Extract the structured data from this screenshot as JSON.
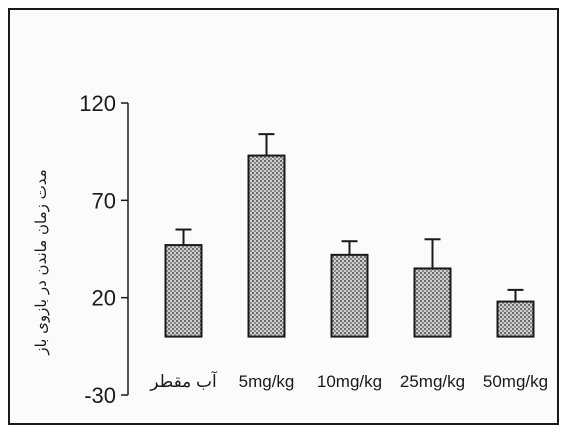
{
  "chart_data": {
    "type": "bar",
    "title": "",
    "xlabel": "",
    "ylabel": "مدت زمان ماندن در بازوی باز",
    "categories": [
      "آب مقطر",
      "5mg/kg",
      "10mg/kg",
      "25mg/kg",
      "50mg/kg"
    ],
    "values": [
      47,
      93,
      42,
      35,
      18
    ],
    "errors": [
      8,
      11,
      7,
      15,
      6
    ],
    "yticks": [
      120,
      70,
      20,
      -30
    ],
    "ylim": [
      -30,
      120
    ],
    "bar_base": 0,
    "grid": false,
    "legend": "none",
    "colors": {
      "bar_fill": "#c8c8c8",
      "bar_pattern": "#6a6a6a",
      "stroke": "#1a1a1a"
    }
  }
}
